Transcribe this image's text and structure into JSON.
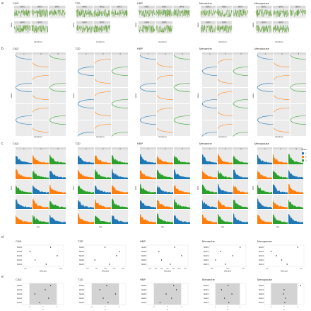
{
  "rows": {
    "a": {
      "letter": "a",
      "panels": [
        {
          "title": "CAD",
          "strips": [
            "MAF1",
            "MAF2",
            "MAF3",
            "MAF4",
            "MAF5"
          ],
          "xlabel": "Iterations",
          "ylabel": "value"
        },
        {
          "title": "T2D",
          "strips": [
            "MAF1",
            "MAF2",
            "MAF3",
            "MAF4",
            "MAF5"
          ],
          "xlabel": "Iterations",
          "ylabel": "value"
        },
        {
          "title": "HBP",
          "strips": [
            "MAF1",
            "MAF2",
            "MAF3",
            "MAF4",
            "MAF5"
          ],
          "xlabel": "Iterations",
          "ylabel": "value"
        },
        {
          "title": "Menarche",
          "strips": [
            "MAF1",
            "MAF2",
            "MAF3",
            "MAF4",
            "MAF5"
          ],
          "xlabel": "Iterations",
          "ylabel": "value"
        },
        {
          "title": "Menopause",
          "strips": [
            "MAF1",
            "MAF2",
            "MAF3",
            "MAF4",
            "MAF5"
          ],
          "xlabel": "Iterations",
          "ylabel": "value"
        }
      ]
    },
    "b": {
      "letter": "b",
      "col_strips": [
        "1",
        "2",
        "3"
      ],
      "panels": [
        {
          "title": "CAD",
          "xlabel": "Iterations",
          "ylabel": "value"
        },
        {
          "title": "T2D",
          "xlabel": "Iterations",
          "ylabel": "value"
        },
        {
          "title": "HBP",
          "xlabel": "Iterations",
          "ylabel": "value"
        },
        {
          "title": "Menarche",
          "xlabel": "Iterations",
          "ylabel": "value"
        },
        {
          "title": "Menopause",
          "xlabel": "Iterations",
          "ylabel": "value"
        }
      ]
    },
    "c": {
      "letter": "c",
      "col_strips": [
        "1",
        "2",
        "3"
      ],
      "panels": [
        {
          "title": "CAD",
          "xlabel": "lag",
          "ylabel": "ACF"
        },
        {
          "title": "T2D",
          "xlabel": "lag",
          "ylabel": "ACF"
        },
        {
          "title": "HBP",
          "xlabel": "lag",
          "ylabel": "ACF"
        },
        {
          "title": "Menarche",
          "xlabel": "lag",
          "ylabel": "ACF"
        },
        {
          "title": "Menopause",
          "xlabel": "lag",
          "ylabel": "ACF"
        }
      ],
      "legend": {
        "title": "Chain",
        "items": [
          "1",
          "2",
          "3"
        ]
      }
    },
    "d": {
      "letter": "d",
      "panels": [
        {
          "title": "CAD",
          "xlabel": "effective"
        },
        {
          "title": "T2D",
          "xlabel": "effective"
        },
        {
          "title": "HBP",
          "xlabel": "effective"
        },
        {
          "title": "Menarche",
          "xlabel": "effective"
        },
        {
          "title": "Menopause",
          "xlabel": "effective"
        }
      ]
    },
    "e": {
      "letter": "e",
      "panels": [
        {
          "title": "CAD",
          "xlabel": "z"
        },
        {
          "title": "T2D",
          "xlabel": "z"
        },
        {
          "title": "HBP",
          "xlabel": "z"
        },
        {
          "title": "Menarche",
          "xlabel": "z"
        },
        {
          "title": "Menopause",
          "xlabel": "z"
        }
      ]
    }
  },
  "colors": {
    "chain1": "#1f77b4",
    "chain2": "#ff7f0e",
    "chain3": "#2ca02c",
    "trace": "#5d9a32",
    "panel_bg": "#ebebeb",
    "strip_bg": "#d9d9d9",
    "shade": "#d3d3d3",
    "point": "#222222"
  },
  "chart_data": [
    {
      "type": "line",
      "panel": "a",
      "description": "Trace plots of MAF1–MAF5 over iterations for CAD, T2D, HBP, Menarche, Menopause",
      "series": [
        "MAF1",
        "MAF2",
        "MAF3",
        "MAF4",
        "MAF5"
      ]
    },
    {
      "type": "line",
      "panel": "b",
      "description": "Chain trajectories per chain (1, 2, 3) across 5 parameters",
      "series": [
        {
          "name": "1"
        },
        {
          "name": "2"
        },
        {
          "name": "3"
        }
      ]
    },
    {
      "type": "bar",
      "panel": "c",
      "description": "Autocorrelation by lag for chains 1–3",
      "series": [
        {
          "name": "1"
        },
        {
          "name": "2"
        },
        {
          "name": "3"
        }
      ]
    },
    {
      "type": "scatter",
      "panel": "d",
      "categories": [
        "MAF1",
        "MAF2",
        "MAF3",
        "MAF4",
        "MAF5"
      ],
      "panels": [
        {
          "title": "CAD",
          "values": [
            300,
            150,
            450,
            80,
            360
          ],
          "ticks": [
            "200",
            "400"
          ]
        },
        {
          "title": "T2D",
          "values": [
            320,
            120,
            420,
            460,
            260
          ],
          "ticks": [
            "100",
            "200",
            "300",
            "400",
            "500"
          ]
        },
        {
          "title": "HBP",
          "values": [
            250,
            150,
            380,
            120,
            300
          ],
          "ticks": [
            "100",
            "200",
            "300",
            "400",
            "500",
            "600",
            "700"
          ]
        },
        {
          "title": "Menarche",
          "values": [
            60,
            20,
            90,
            40,
            120
          ],
          "ticks": [
            "300",
            "500",
            "700"
          ]
        },
        {
          "title": "Menopause",
          "values": [
            40,
            30,
            20,
            10,
            60
          ],
          "ticks": [
            "100",
            "200"
          ]
        }
      ]
    },
    {
      "type": "scatter",
      "panel": "e",
      "categories": [
        "MAF1",
        "MAF2",
        "MAF3",
        "MAF4",
        "MAF5"
      ],
      "panels": [
        {
          "title": "CAD",
          "values": [
            -0.5,
            0.8,
            -1.2,
            0.3,
            1.1
          ],
          "ticks": [
            "-2",
            "0",
            "2"
          ]
        },
        {
          "title": "T2D",
          "values": [
            0.4,
            -0.3,
            1.5,
            -0.8,
            0.2
          ],
          "ticks": [
            "-2",
            "0",
            "2"
          ]
        },
        {
          "title": "HBP",
          "values": [
            -1.1,
            0.6,
            -0.2,
            1.3,
            0.9
          ],
          "ticks": [
            "-2",
            "0",
            "2"
          ]
        },
        {
          "title": "Menarche",
          "values": [
            0.2,
            -0.5,
            0.7,
            -1.0,
            0.1
          ],
          "ticks": [
            "-2",
            "0",
            "2"
          ]
        },
        {
          "title": "Menopause",
          "values": [
            0.1,
            0.2,
            -0.1,
            0.0,
            2.5
          ],
          "ticks": [
            "-2",
            "0",
            "2"
          ]
        }
      ],
      "shaded_range": [
        -2,
        2
      ]
    }
  ]
}
